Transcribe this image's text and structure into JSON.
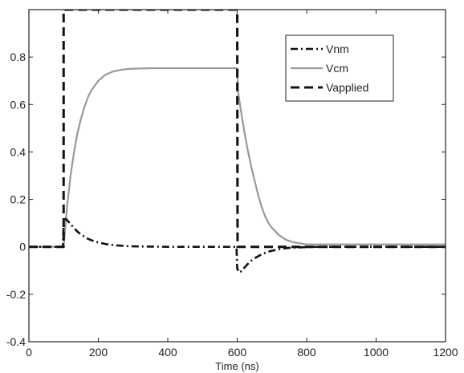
{
  "chart_data": {
    "type": "line",
    "title": "",
    "xlabel": "Time (ns)",
    "ylabel": "",
    "xlim": [
      0,
      1200
    ],
    "ylim": [
      -0.4,
      1.0
    ],
    "xticks": [
      0,
      200,
      400,
      600,
      800,
      1000,
      1200
    ],
    "xtick_labels": [
      "0",
      "200",
      "400",
      "600",
      "800",
      "1000",
      "1200"
    ],
    "yticks": [
      -0.4,
      -0.2,
      0,
      0.2,
      0.4,
      0.6,
      0.8
    ],
    "ytick_labels": [
      "-0.4",
      "-0.2",
      "0",
      "0.2",
      "0.4",
      "0.6",
      "0.8"
    ],
    "grid": false,
    "legend_position": "top-right",
    "series": [
      {
        "name": "Vnm",
        "style": "dash-dot",
        "color": "#111111",
        "x": [
          0,
          98,
          100,
          105,
          110,
          120,
          130,
          140,
          150,
          170,
          190,
          220,
          250,
          300,
          350,
          400,
          450,
          500,
          550,
          598,
          600,
          605,
          610,
          620,
          630,
          640,
          650,
          670,
          690,
          720,
          750,
          800,
          850,
          900,
          1000,
          1100,
          1200
        ],
        "y": [
          0,
          0,
          0.1,
          0.118,
          0.113,
          0.096,
          0.079,
          0.064,
          0.052,
          0.034,
          0.022,
          0.012,
          0.006,
          0.002,
          0.001,
          0,
          0,
          0,
          0,
          0,
          -0.09,
          -0.108,
          -0.105,
          -0.089,
          -0.073,
          -0.059,
          -0.048,
          -0.032,
          -0.02,
          -0.01,
          -0.004,
          -0.001,
          0,
          0,
          0,
          0,
          0
        ]
      },
      {
        "name": "Vcm",
        "style": "solid",
        "color": "#999999",
        "x": [
          0,
          100,
          110,
          120,
          130,
          140,
          150,
          160,
          170,
          180,
          190,
          200,
          220,
          240,
          260,
          280,
          300,
          350,
          400,
          450,
          500,
          550,
          600,
          602,
          610,
          620,
          630,
          640,
          650,
          660,
          670,
          680,
          690,
          700,
          720,
          740,
          760,
          780,
          800,
          850,
          900,
          1000,
          1100,
          1200
        ],
        "y": [
          0,
          0,
          0.17,
          0.3,
          0.4,
          0.48,
          0.54,
          0.59,
          0.63,
          0.66,
          0.68,
          0.7,
          0.725,
          0.738,
          0.745,
          0.749,
          0.751,
          0.753,
          0.753,
          0.753,
          0.753,
          0.753,
          0.753,
          0.66,
          0.58,
          0.49,
          0.41,
          0.34,
          0.28,
          0.22,
          0.17,
          0.13,
          0.1,
          0.08,
          0.05,
          0.03,
          0.02,
          0.015,
          0.01,
          0.01,
          0.01,
          0.01,
          0.01,
          0.01
        ]
      },
      {
        "name": "Vapplied",
        "style": "dashed",
        "color": "#111111",
        "x": [
          0,
          99,
          100,
          100,
          600,
          600,
          601,
          1200
        ],
        "y": [
          0,
          0,
          0,
          1.0,
          1.0,
          1.0,
          0,
          0
        ]
      }
    ]
  }
}
